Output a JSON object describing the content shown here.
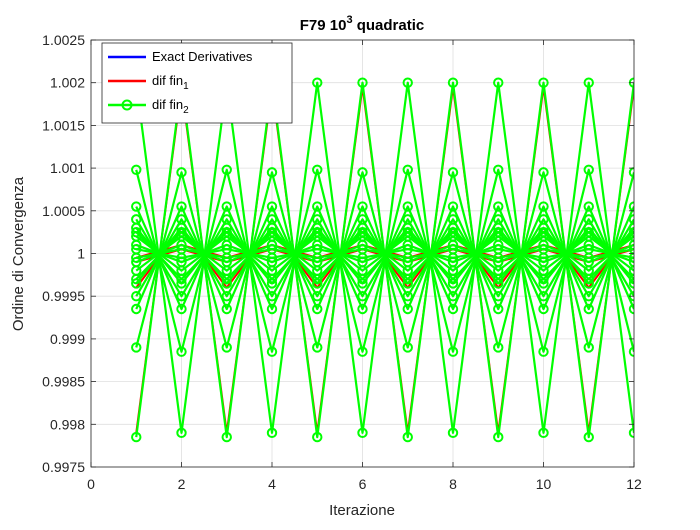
{
  "chart_data": {
    "type": "line",
    "title": {
      "prefix": "F79 10",
      "superscript": "3",
      "suffix": " quadratic"
    },
    "xlabel": "Iterazione",
    "ylabel": "Ordine di Convergenza",
    "xlim": [
      0,
      12
    ],
    "ylim": [
      0.9975,
      1.0025
    ],
    "xticks": [
      0,
      2,
      4,
      6,
      8,
      10,
      12
    ],
    "yticks": [
      0.9975,
      0.998,
      0.9985,
      0.999,
      0.9995,
      1,
      1.0005,
      1.001,
      1.0015,
      1.002,
      1.0025
    ],
    "ytick_labels": [
      "0.9975",
      "0.998",
      "0.9985",
      "0.999",
      "0.9995",
      "1",
      "1.0005",
      "1.001",
      "1.0015",
      "1.002",
      "1.0025"
    ],
    "grid": true,
    "legend_position": "top-left",
    "x": [
      1,
      2,
      3,
      4,
      5,
      6,
      7,
      8,
      9,
      10,
      11,
      12
    ],
    "series": [
      {
        "name": "Exact Derivatives",
        "label_main": "Exact Derivatives",
        "label_sub": "",
        "color": "#0000ff",
        "marker": "none",
        "lines": [
          [
            0.99995,
            1.00005,
            0.99995,
            1.00005,
            0.99995,
            1.00005,
            0.99995,
            1.00005,
            0.99995,
            1.00005,
            0.99995,
            1.00005
          ]
        ]
      },
      {
        "name": "dif fin1",
        "label_main": "dif fin",
        "label_sub": "1",
        "color": "#ff0000",
        "marker": "none",
        "lines": [
          [
            0.9996,
            1.0003,
            0.9996,
            1.0003,
            0.9996,
            1.0003,
            0.9996,
            1.0003,
            0.9996,
            1.0003,
            0.9996,
            1.0003
          ],
          [
            0.99995,
            1.0001,
            0.99995,
            1.0001,
            0.99995,
            1.0001,
            0.99995,
            1.0001,
            0.99995,
            1.0001,
            0.99995,
            1.0001
          ],
          [
            0.9999,
            1.00005,
            0.9999,
            1.00005,
            0.9999,
            1.00005,
            0.9999,
            1.00005,
            0.9999,
            1.00005,
            0.9999,
            1.00005
          ],
          [
            0.9979,
            1.00195,
            0.9979,
            1.00195,
            0.9979,
            1.00195,
            0.9979,
            1.00195,
            0.9979,
            1.00195,
            0.9979,
            1.00195
          ]
        ]
      },
      {
        "name": "dif fin2",
        "label_main": "dif fin",
        "label_sub": "2",
        "color": "#00ff00",
        "marker": "circle",
        "lines": [
          [
            0.99785,
            1.002,
            0.99785,
            1.002,
            0.99785,
            1.002,
            0.99785,
            1.002,
            0.99785,
            1.002,
            0.99785,
            1.002
          ],
          [
            1.002,
            0.9979,
            1.002,
            0.9979,
            1.002,
            0.9979,
            1.002,
            0.9979,
            1.002,
            0.9979,
            1.002,
            0.9979
          ],
          [
            0.9989,
            1.00095,
            0.9989,
            1.00095,
            0.9989,
            1.00095,
            0.9989,
            1.00095,
            0.9989,
            1.00095,
            0.9989,
            1.00095
          ],
          [
            1.00098,
            0.99885,
            1.00098,
            0.99885,
            1.00098,
            0.99885,
            1.00098,
            0.99885,
            1.00098,
            0.99885,
            1.00098,
            0.99885
          ],
          [
            0.99935,
            1.00055,
            0.99935,
            1.00055,
            0.99935,
            1.00055,
            0.99935,
            1.00055,
            0.99935,
            1.00055,
            0.99935,
            1.00055
          ],
          [
            1.00055,
            0.99935,
            1.00055,
            0.99935,
            1.00055,
            0.99935,
            1.00055,
            0.99935,
            1.00055,
            0.99935,
            1.00055,
            0.99935
          ],
          [
            0.9995,
            1.0004,
            0.9995,
            1.0004,
            0.9995,
            1.0004,
            0.9995,
            1.0004,
            0.9995,
            1.0004,
            0.9995,
            1.0004
          ],
          [
            1.0004,
            0.9995,
            1.0004,
            0.9995,
            1.0004,
            0.9995,
            1.0004,
            0.9995,
            1.0004,
            0.9995,
            1.0004,
            0.9995
          ],
          [
            0.99965,
            1.0003,
            0.99965,
            1.0003,
            0.99965,
            1.0003,
            0.99965,
            1.0003,
            0.99965,
            1.0003,
            0.99965,
            1.0003
          ],
          [
            1.0003,
            0.99965,
            1.0003,
            0.99965,
            1.0003,
            0.99965,
            1.0003,
            0.99965,
            1.0003,
            0.99965,
            1.0003,
            0.99965
          ],
          [
            0.9997,
            1.00025,
            0.9997,
            1.00025,
            0.9997,
            1.00025,
            0.9997,
            1.00025,
            0.9997,
            1.00025,
            0.9997,
            1.00025
          ],
          [
            1.00025,
            0.9997,
            1.00025,
            0.9997,
            1.00025,
            0.9997,
            1.00025,
            0.9997,
            1.00025,
            0.9997,
            1.00025,
            0.9997
          ],
          [
            0.9998,
            1.0002,
            0.9998,
            1.0002,
            0.9998,
            1.0002,
            0.9998,
            1.0002,
            0.9998,
            1.0002,
            0.9998,
            1.0002
          ],
          [
            1.0002,
            0.9998,
            1.0002,
            0.9998,
            1.0002,
            0.9998,
            1.0002,
            0.9998,
            1.0002,
            0.9998,
            1.0002,
            0.9998
          ],
          [
            0.9999,
            1.0001,
            0.9999,
            1.0001,
            0.9999,
            1.0001,
            0.9999,
            1.0001,
            0.9999,
            1.0001,
            0.9999,
            1.0001
          ],
          [
            1.0001,
            0.9999,
            1.0001,
            0.9999,
            1.0001,
            0.9999,
            1.0001,
            0.9999,
            1.0001,
            0.9999,
            1.0001,
            0.9999
          ],
          [
            0.99995,
            1.00005,
            0.99995,
            1.00005,
            0.99995,
            1.00005,
            0.99995,
            1.00005,
            0.99995,
            1.00005,
            0.99995,
            1.00005
          ],
          [
            1.00005,
            0.99995,
            1.00005,
            0.99995,
            1.00005,
            0.99995,
            1.00005,
            0.99995,
            1.00005,
            0.99995,
            1.00005,
            0.99995
          ]
        ]
      }
    ]
  }
}
